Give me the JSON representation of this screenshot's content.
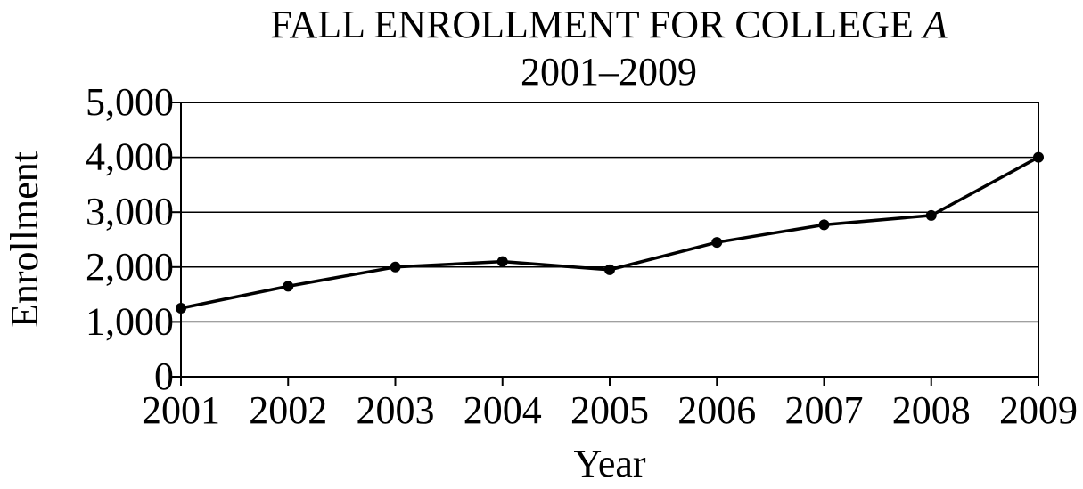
{
  "chart_data": {
    "type": "line",
    "title_main": "FALL ENROLLMENT FOR COLLEGE ",
    "title_italic": "A",
    "subtitle": "2001–2009",
    "xlabel": "Year",
    "ylabel": "Enrollment",
    "x": [
      "2001",
      "2002",
      "2003",
      "2004",
      "2005",
      "2006",
      "2007",
      "2008",
      "2009"
    ],
    "series": [
      {
        "values": [
          1250,
          1650,
          2000,
          2100,
          1950,
          2450,
          2770,
          2940,
          4000
        ]
      }
    ],
    "y_ticks": [
      0,
      1000,
      2000,
      3000,
      4000,
      5000
    ],
    "y_tick_labels": [
      "0",
      "1,000",
      "2,000",
      "3,000",
      "4,000",
      "5,000"
    ],
    "ylim": [
      0,
      5000
    ],
    "grid": true,
    "legend": "none",
    "line_color": "#000000"
  }
}
